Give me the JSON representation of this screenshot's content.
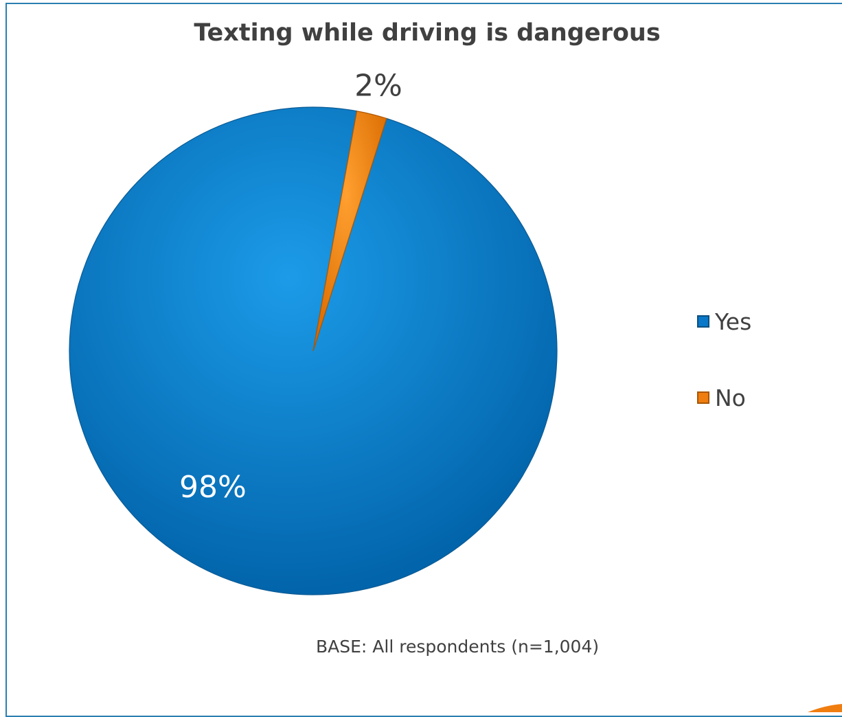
{
  "chart_data": {
    "type": "pie",
    "title": "Texting while driving is dangerous",
    "categories": [
      "Yes",
      "No"
    ],
    "values": [
      98,
      2
    ],
    "labels": [
      "98%",
      "2%"
    ],
    "colors": [
      "#0a78c8",
      "#f07d10"
    ],
    "legend_position": "right",
    "note": "BASE: All respondents (n=1,004)"
  }
}
